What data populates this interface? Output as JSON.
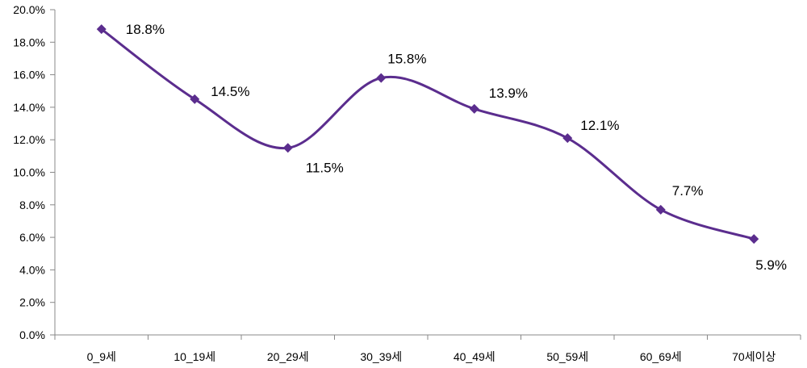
{
  "chart_data": {
    "type": "line",
    "title": "",
    "xlabel": "",
    "ylabel": "",
    "categories": [
      "0_9세",
      "10_19세",
      "20_29세",
      "30_39세",
      "40_49세",
      "50_59세",
      "60_69세",
      "70세이상"
    ],
    "series": [
      {
        "values": [
          18.8,
          14.5,
          11.5,
          15.8,
          13.9,
          12.1,
          7.7,
          5.9
        ],
        "labels": [
          "18.8%",
          "14.5%",
          "11.5%",
          "15.8%",
          "13.9%",
          "12.1%",
          "7.7%",
          "5.9%"
        ],
        "color": "#5b2d8e"
      }
    ],
    "ylim": [
      0,
      20
    ],
    "yticks": [
      "0.0%",
      "2.0%",
      "4.0%",
      "6.0%",
      "8.0%",
      "10.0%",
      "12.0%",
      "14.0%",
      "16.0%",
      "18.0%",
      "20.0%"
    ],
    "grid": false,
    "legend": "none",
    "smooth": true,
    "marker": "diamond"
  }
}
